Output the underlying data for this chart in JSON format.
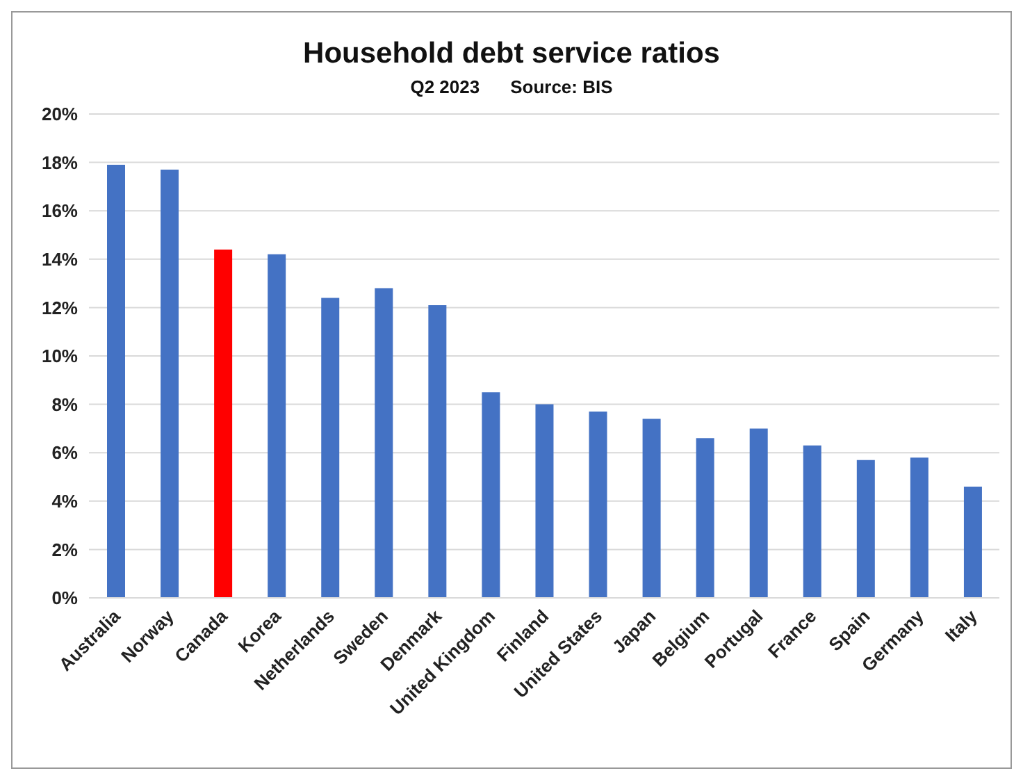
{
  "chart_data": {
    "type": "bar",
    "title": "Household debt service ratios",
    "subtitle": "Q2 2023",
    "annotations": [
      "Source: BIS"
    ],
    "categories": [
      "Australia",
      "Norway",
      "Canada",
      "Korea",
      "Netherlands",
      "Sweden",
      "Denmark",
      "United Kingdom",
      "Finland",
      "United States",
      "Japan",
      "Belgium",
      "Portugal",
      "France",
      "Spain",
      "Germany",
      "Italy"
    ],
    "values": [
      17.9,
      17.7,
      14.4,
      14.2,
      12.4,
      12.8,
      12.1,
      8.5,
      8.0,
      7.7,
      7.4,
      6.6,
      7.0,
      6.3,
      5.7,
      5.8,
      4.6
    ],
    "colors": [
      "#4472c4",
      "#4472c4",
      "#ff0000",
      "#4472c4",
      "#4472c4",
      "#4472c4",
      "#4472c4",
      "#4472c4",
      "#4472c4",
      "#4472c4",
      "#4472c4",
      "#4472c4",
      "#4472c4",
      "#4472c4",
      "#4472c4",
      "#4472c4",
      "#4472c4"
    ],
    "ylim": [
      0,
      20
    ],
    "yticks": [
      {
        "value": 0,
        "label": "0%"
      },
      {
        "value": 2,
        "label": "2%"
      },
      {
        "value": 4,
        "label": "4%"
      },
      {
        "value": 6,
        "label": "6%"
      },
      {
        "value": 8,
        "label": "8%"
      },
      {
        "value": 10,
        "label": "10%"
      },
      {
        "value": 12,
        "label": "12%"
      },
      {
        "value": 14,
        "label": "14%"
      },
      {
        "value": 16,
        "label": "16%"
      },
      {
        "value": 18,
        "label": "18%"
      },
      {
        "value": 20,
        "label": "20%"
      }
    ],
    "grid": "y"
  }
}
